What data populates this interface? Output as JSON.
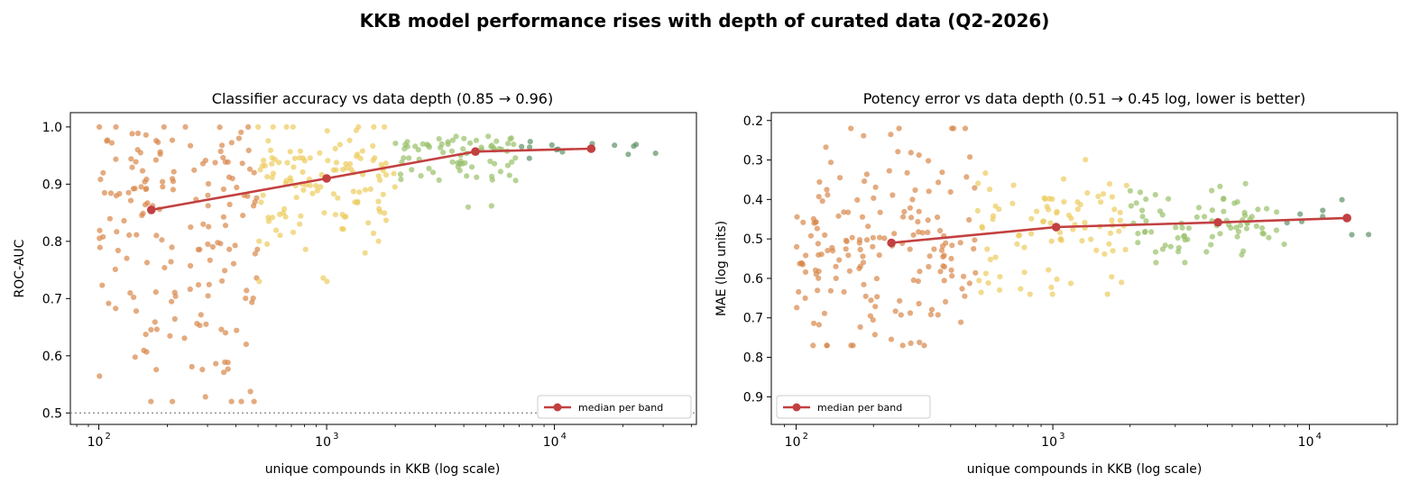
{
  "figure": {
    "suptitle": "KKB model performance rises with depth of curated data (Q2-2026)"
  },
  "colors": {
    "band_small": "#d8874a",
    "band_mid": "#eccc5e",
    "band_large": "#98c06a",
    "band_xlarge": "#5e9166",
    "median_line": "#c34040",
    "reference_line": "#999999"
  },
  "chart_data": [
    {
      "type": "scatter",
      "title": "Classifier accuracy vs data depth  (0.85 → 0.96)",
      "xlabel": "unique compounds in KKB (log scale)",
      "ylabel": "ROC-AUC",
      "x_scale": "log",
      "x_ticks": [
        100,
        1000,
        10000
      ],
      "x_tick_labels": [
        "10",
        "10",
        "10"
      ],
      "x_tick_exponents": [
        "2",
        "3",
        "4"
      ],
      "xlim": [
        75,
        42000
      ],
      "y_ticks": [
        0.5,
        0.6,
        0.7,
        0.8,
        0.9,
        1.0
      ],
      "y_tick_labels": [
        "0.5",
        "0.6",
        "0.7",
        "0.8",
        "0.9",
        "1.0"
      ],
      "ylim": [
        0.48,
        1.025
      ],
      "y_inverted": false,
      "reference_line": {
        "y": 0.5,
        "style": "dotted"
      },
      "legend": {
        "label": "median per band",
        "location": "lower-right"
      },
      "median_series": {
        "name": "median per band",
        "x": [
          170,
          1000,
          4500,
          14500
        ],
        "y": [
          0.855,
          0.91,
          0.957,
          0.962
        ]
      },
      "bands": [
        {
          "range": [
            100,
            500
          ],
          "color_key": "band_small",
          "count": 175,
          "center": 0.86,
          "spread_low": 0.33,
          "spread_high": 0.14,
          "clip": [
            0.52,
            1.0
          ]
        },
        {
          "range": [
            500,
            2000
          ],
          "color_key": "band_mid",
          "count": 125,
          "center": 0.91,
          "spread_low": 0.13,
          "spread_high": 0.08,
          "clip": [
            0.73,
            1.0
          ]
        },
        {
          "range": [
            2000,
            7000
          ],
          "color_key": "band_large",
          "count": 75,
          "center": 0.955,
          "spread_low": 0.07,
          "spread_high": 0.03,
          "clip": [
            0.86,
            0.99
          ]
        },
        {
          "range": [
            7000,
            30000
          ],
          "color_key": "band_xlarge",
          "count": 14,
          "center": 0.96,
          "spread_low": 0.015,
          "spread_high": 0.012,
          "clip": [
            0.94,
            0.975
          ]
        }
      ]
    },
    {
      "type": "scatter",
      "title": "Potency error vs data depth  (0.51 → 0.45 log, lower is better)",
      "xlabel": "unique compounds in KKB (log scale)",
      "ylabel": "MAE (log units)",
      "x_scale": "log",
      "x_ticks": [
        100,
        1000,
        10000
      ],
      "x_tick_labels": [
        "10",
        "10",
        "10"
      ],
      "x_tick_exponents": [
        "2",
        "3",
        "4"
      ],
      "xlim": [
        80,
        22000
      ],
      "y_ticks": [
        0.2,
        0.3,
        0.4,
        0.5,
        0.6,
        0.7,
        0.8,
        0.9
      ],
      "y_tick_labels": [
        "0.2",
        "0.3",
        "0.4",
        "0.5",
        "0.6",
        "0.7",
        "0.8",
        "0.9"
      ],
      "ylim": [
        0.18,
        0.97
      ],
      "y_inverted": true,
      "legend": {
        "label": "median per band",
        "location": "lower-left"
      },
      "median_series": {
        "name": "median per band",
        "x": [
          235,
          1030,
          4400,
          14000
        ],
        "y": [
          0.51,
          0.47,
          0.458,
          0.447
        ]
      },
      "bands": [
        {
          "range": [
            100,
            500
          ],
          "color_key": "band_small",
          "count": 175,
          "center": 0.51,
          "spread_low": 0.27,
          "spread_high": 0.24,
          "clip": [
            0.22,
            0.77
          ]
        },
        {
          "range": [
            500,
            2000
          ],
          "color_key": "band_mid",
          "count": 90,
          "center": 0.47,
          "spread_low": 0.13,
          "spread_high": 0.18,
          "clip": [
            0.27,
            0.64
          ]
        },
        {
          "range": [
            2000,
            8000
          ],
          "color_key": "band_large",
          "count": 80,
          "center": 0.458,
          "spread_low": 0.08,
          "spread_high": 0.09,
          "clip": [
            0.36,
            0.56
          ]
        },
        {
          "range": [
            8000,
            18000
          ],
          "color_key": "band_xlarge",
          "count": 8,
          "center": 0.447,
          "spread_low": 0.05,
          "spread_high": 0.09,
          "clip": [
            0.38,
            0.54
          ]
        }
      ]
    }
  ]
}
